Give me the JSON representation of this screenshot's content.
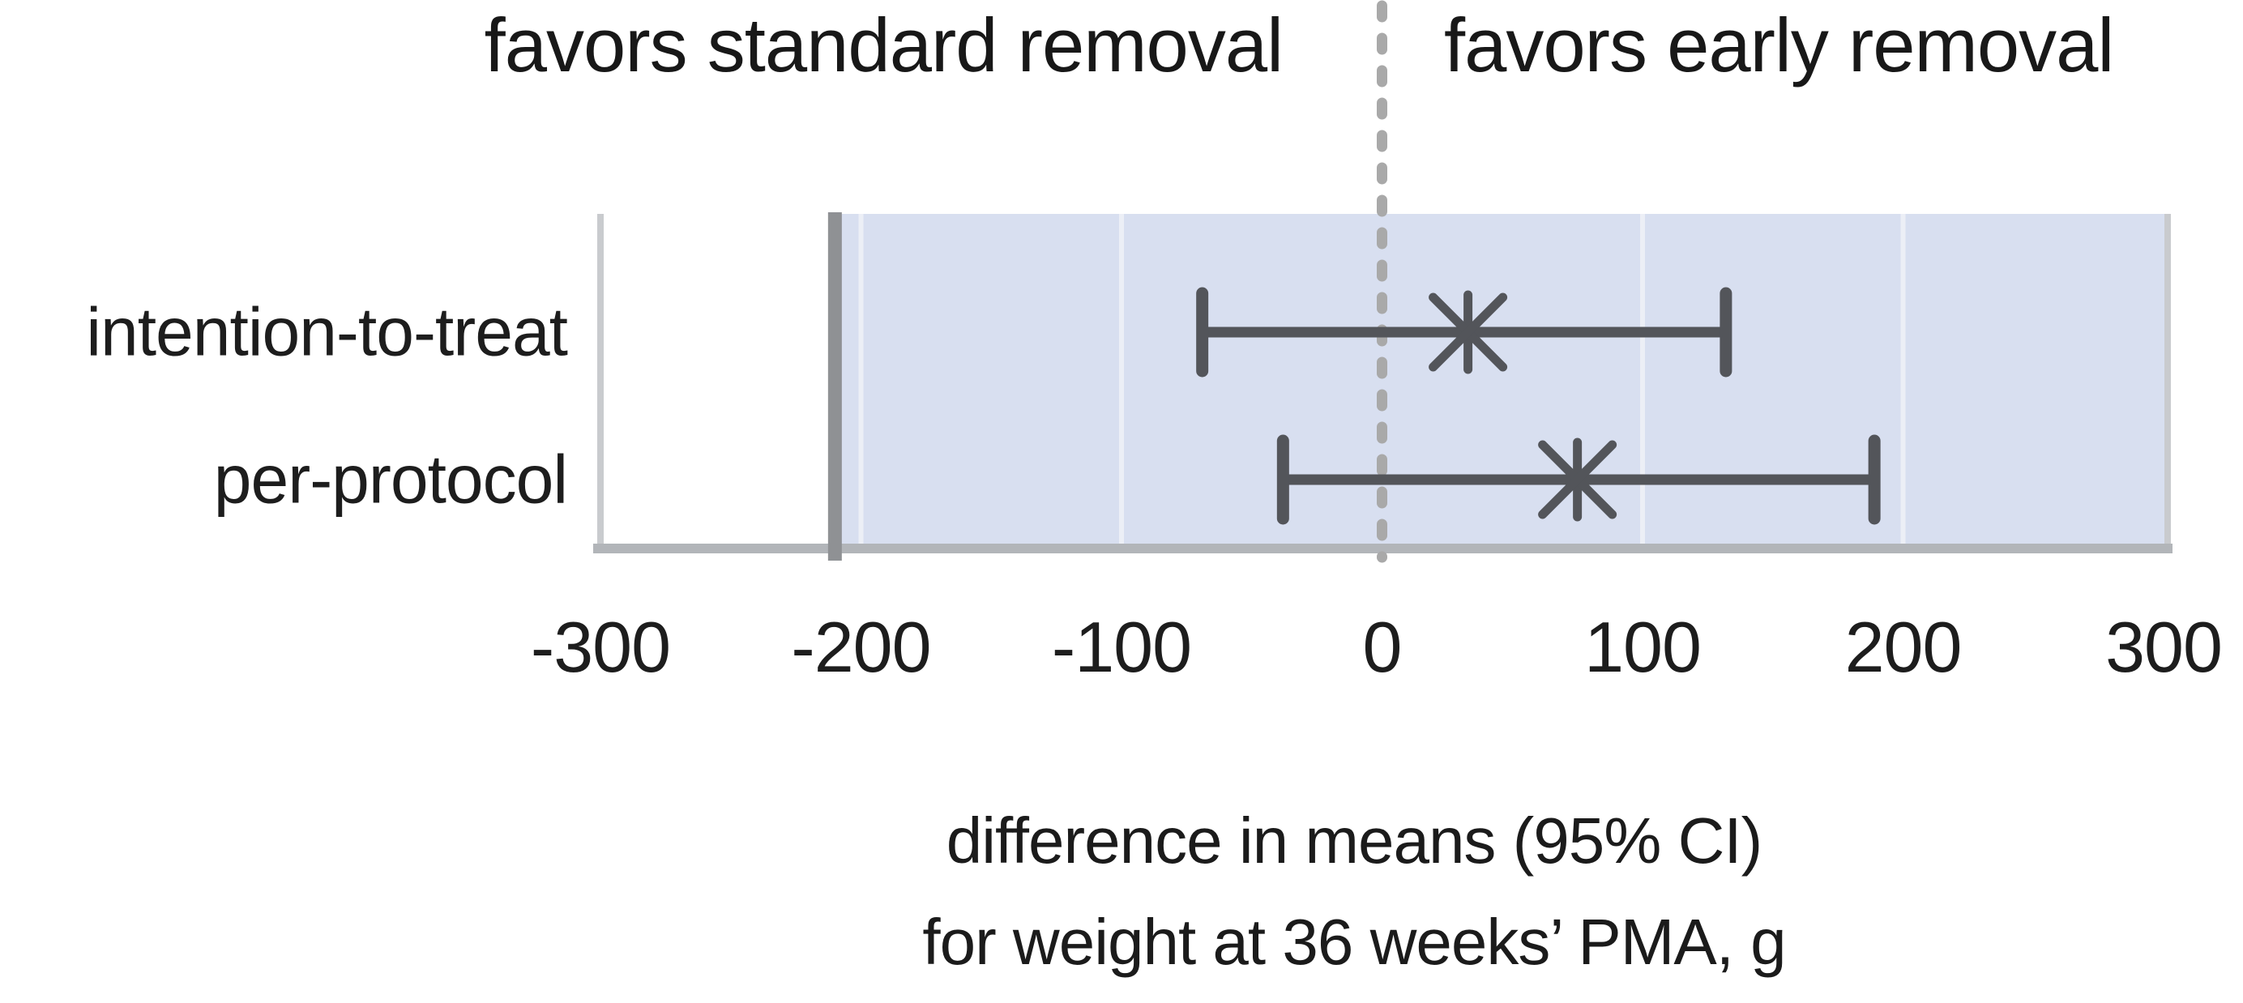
{
  "chart_data": {
    "type": "forest_plot",
    "orientation": "horizontal",
    "header": {
      "left": "favors standard removal",
      "right": "favors early removal"
    },
    "categories": [
      "intention-to-treat",
      "per-protocol"
    ],
    "rows": [
      {
        "label": "intention-to-treat",
        "mean": 33,
        "ci_low": -69,
        "ci_high": 132
      },
      {
        "label": "per-protocol",
        "mean": 75,
        "ci_low": -38,
        "ci_high": 189
      }
    ],
    "ci_level": "95% CI",
    "marker": "asterisk",
    "x_axis": {
      "min": -300,
      "max": 300,
      "ticks": [
        -300,
        -200,
        -100,
        0,
        100,
        200,
        300
      ],
      "label_line1": "difference in means (95% CI)",
      "label_line2": "for weight at 36 weeks’ PMA, g"
    },
    "reference_line_x": 0,
    "noninferiority_margin_x": -210,
    "shaded_region": {
      "from": -210,
      "to": 300
    },
    "grid": true,
    "legend": "none"
  },
  "colors": {
    "shaded_region": "#d8dff0",
    "bar": "#53555a",
    "reference_line": "#a9a9a9",
    "margin_line": "#8f9194",
    "gridline": "#eceff6",
    "axis_line": "#b2b5b9",
    "plot_border": "#c9cbce",
    "text": "#1d1d1d"
  }
}
